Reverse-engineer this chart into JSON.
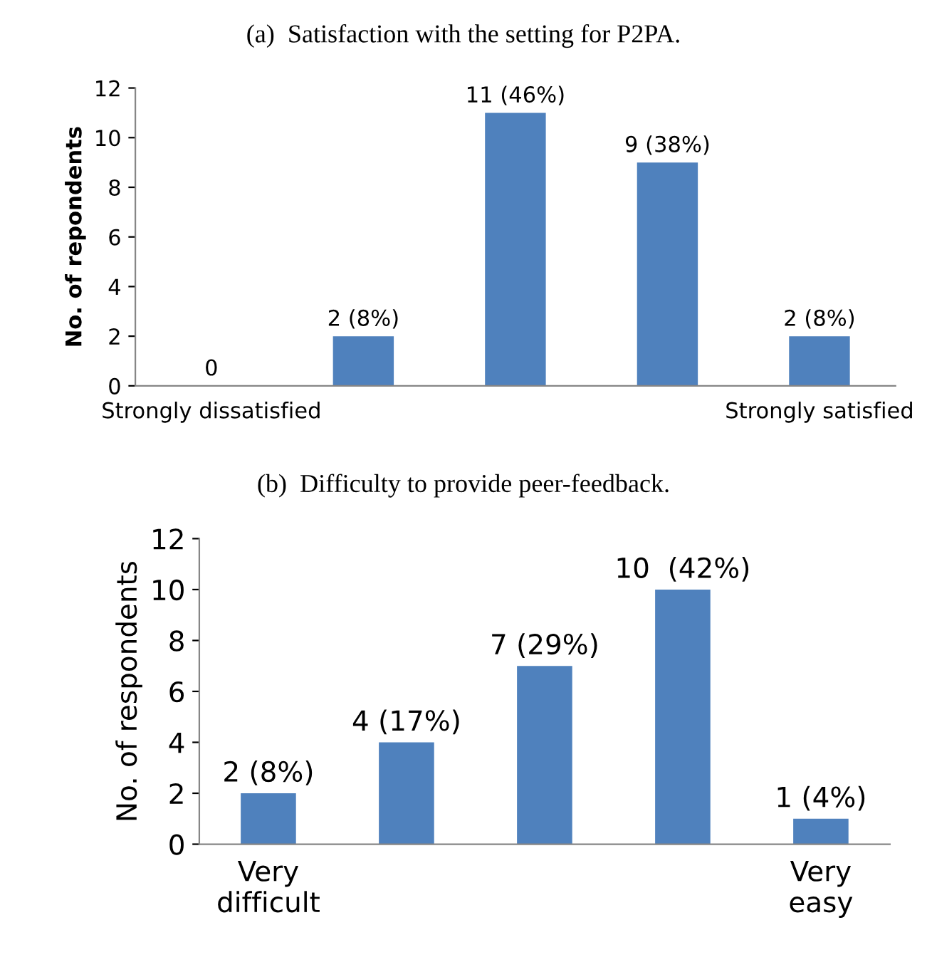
{
  "chart_data": [
    {
      "type": "bar",
      "title": "(a)  Satisfaction with the setting for P2PA.",
      "ylabel": "No. of repondents",
      "categories": [
        "Strongly dissatisfied",
        null,
        null,
        null,
        "Strongly satisfied"
      ],
      "values": [
        0,
        2,
        11,
        9,
        2
      ],
      "value_labels": [
        "0",
        "2 (8%)",
        "11 (46%)",
        "9 (38%)",
        "2 (8%)"
      ],
      "color": "#4f81bd",
      "ylim": [
        0,
        12
      ],
      "yticks": [
        0,
        2,
        4,
        6,
        8,
        10,
        12
      ],
      "grid": false,
      "legend": false
    },
    {
      "type": "bar",
      "title": "(b)  Difficulty to provide peer-feedback.",
      "ylabel": "No. of respondents",
      "categories": [
        "Very\ndifficult",
        null,
        null,
        null,
        "Very\neasy"
      ],
      "values": [
        2,
        4,
        7,
        10,
        1
      ],
      "value_labels": [
        "2 (8%)",
        "4 (17%)",
        "7 (29%)",
        "10  (42%)",
        "1 (4%)"
      ],
      "color": "#4f81bd",
      "ylim": [
        0,
        12
      ],
      "yticks": [
        0,
        2,
        4,
        6,
        8,
        10,
        12
      ],
      "grid": false,
      "legend": false
    }
  ]
}
